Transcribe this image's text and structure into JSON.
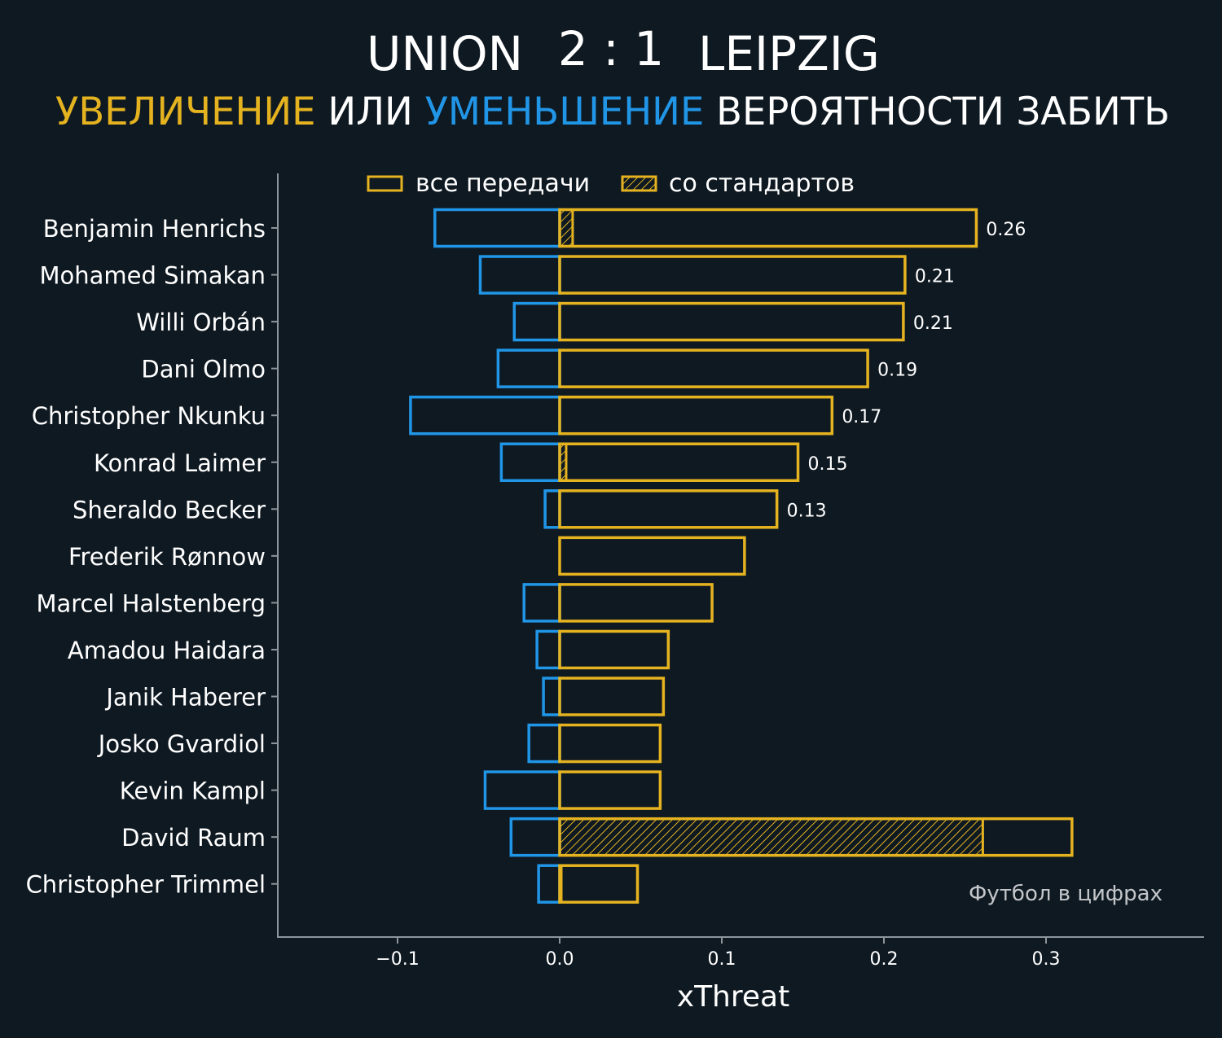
{
  "header": {
    "home_team": "UNION",
    "score": "2 : 1",
    "away_team": "LEIPZIG",
    "subtitle_increase": "УВЕЛИЧЕНИЕ",
    "subtitle_or": "ИЛИ",
    "subtitle_decrease": "УМЕНЬШЕНИЕ",
    "subtitle_rest": "ВЕРОЯТНОСТИ ЗАБИТЬ"
  },
  "colors": {
    "background": "#0f1922",
    "increase": "#e5b320",
    "decrease": "#2195e6",
    "axis": "#8e969d"
  },
  "credit": "Футбол в цифрах",
  "chart_data": {
    "type": "bar",
    "orientation": "horizontal",
    "xlabel": "xThreat",
    "ylabel": "",
    "xlim": [
      -0.173,
      0.399
    ],
    "xticks": [
      -0.1,
      0.0,
      0.1,
      0.2,
      0.3
    ],
    "xtick_labels": [
      "−0.1",
      "0.0",
      "0.1",
      "0.2",
      "0.3"
    ],
    "legend": {
      "position": "top-center",
      "entries": [
        "все передачи",
        "со стандартов"
      ]
    },
    "grid": false,
    "players": [
      "Benjamin Henrichs",
      "Mohamed Simakan",
      "Willi Orbán",
      "Dani Olmo",
      "Christopher Nkunku",
      "Konrad Laimer",
      "Sheraldo Becker",
      "Frederik Rønnow",
      "Marcel Halstenberg",
      "Amadou Haidara",
      "Janik Haberer",
      "Josko Gvardiol",
      "Kevin Kampl",
      "David Raum",
      "Christopher Trimmel"
    ],
    "series": [
      {
        "name": "все передачи",
        "values": [
          0.257,
          0.213,
          0.212,
          0.19,
          0.168,
          0.147,
          0.134,
          0.114,
          0.094,
          0.067,
          0.064,
          0.062,
          0.062,
          0.316,
          0.048
        ]
      },
      {
        "name": "со стандартов",
        "values": [
          0.008,
          0.0,
          0.0,
          0.0,
          0.0,
          0.004,
          0.0,
          0.0,
          0.0,
          0.0,
          0.0,
          0.0,
          0.0,
          0.261,
          0.001
        ]
      },
      {
        "name": "decrease",
        "values": [
          -0.077,
          -0.049,
          -0.028,
          -0.038,
          -0.092,
          -0.036,
          -0.009,
          0.0,
          -0.022,
          -0.014,
          -0.01,
          -0.019,
          -0.046,
          -0.03,
          -0.013
        ]
      }
    ],
    "value_labels": [
      "0.26",
      "0.21",
      "0.21",
      "0.19",
      "0.17",
      "0.15",
      "0.13",
      "",
      "",
      "",
      "",
      "",
      "",
      "",
      ""
    ]
  }
}
